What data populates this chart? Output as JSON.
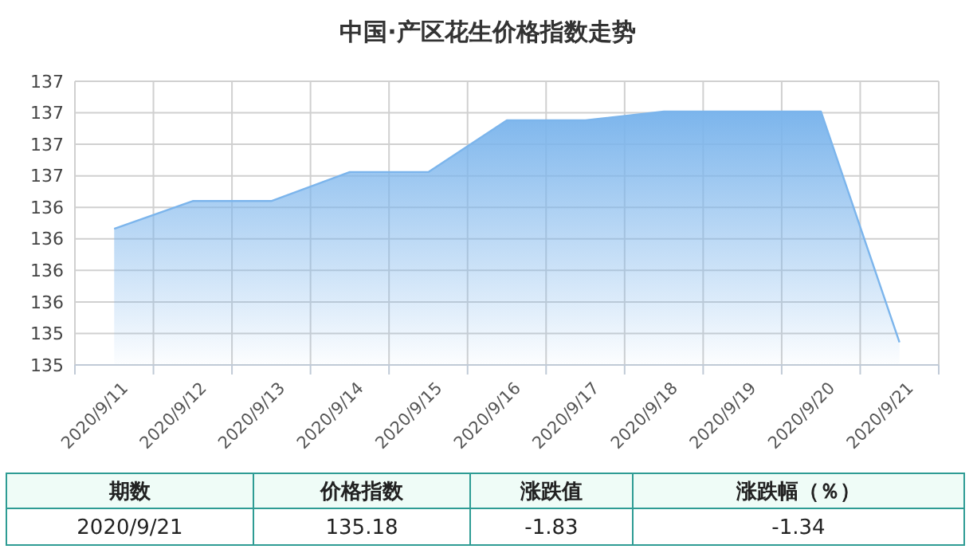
{
  "chart_data": {
    "type": "area",
    "title": "中国·产区花生价格指数走势",
    "categories": [
      "2020/9/11",
      "2020/9/12",
      "2020/9/13",
      "2020/9/14",
      "2020/9/15",
      "2020/9/16",
      "2020/9/17",
      "2020/9/18",
      "2020/9/19",
      "2020/9/20",
      "2020/9/21"
    ],
    "series": [
      {
        "color": "#7cb5ec",
        "values": [
          136.08,
          136.3,
          136.3,
          136.53,
          136.53,
          136.94,
          136.94,
          137.01,
          137.01,
          137.01,
          135.18
        ]
      }
    ],
    "ylim": [
      135,
      137.25
    ],
    "yticks": [
      {
        "value": 135,
        "label": "135"
      },
      {
        "value": 135.25,
        "label": "135"
      },
      {
        "value": 135.5,
        "label": "136"
      },
      {
        "value": 135.75,
        "label": "136"
      },
      {
        "value": 136,
        "label": "136"
      },
      {
        "value": 136.25,
        "label": "136"
      },
      {
        "value": 136.5,
        "label": "137"
      },
      {
        "value": 136.75,
        "label": "137"
      },
      {
        "value": 137,
        "label": "137"
      },
      {
        "value": 137.25,
        "label": "137"
      }
    ],
    "grid": true,
    "annotations": [
      "期数",
      "价格指数",
      "涨跌值",
      "涨跌幅（％）",
      "2020/9/21",
      "135.18",
      "-1.83",
      "-1.34"
    ]
  }
}
